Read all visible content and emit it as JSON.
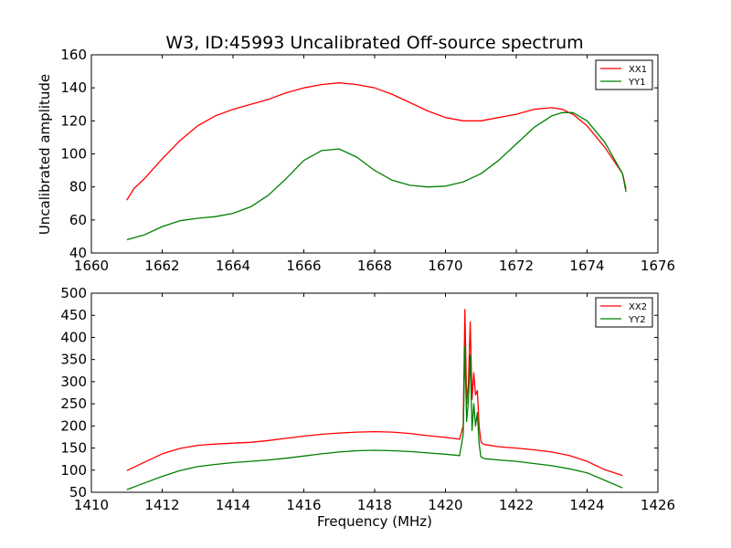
{
  "chart_data": [
    {
      "type": "line",
      "title": "W3, ID:45993 Uncalibrated Off-source spectrum",
      "xlabel": "",
      "ylabel": "Uncalibrated amplitude",
      "xlim": [
        1660,
        1676
      ],
      "ylim": [
        40,
        160
      ],
      "xticks": [
        1660,
        1662,
        1664,
        1666,
        1668,
        1670,
        1672,
        1674,
        1676
      ],
      "yticks": [
        40,
        60,
        80,
        100,
        120,
        140,
        160
      ],
      "legend_position": "top-right",
      "grid": false,
      "series": [
        {
          "name": "XX1",
          "color": "#ff0000",
          "x": [
            1661.0,
            1661.2,
            1661.5,
            1662.0,
            1662.5,
            1663.0,
            1663.5,
            1664.0,
            1664.5,
            1665.0,
            1665.5,
            1666.0,
            1666.5,
            1667.0,
            1667.5,
            1668.0,
            1668.5,
            1669.0,
            1669.5,
            1670.0,
            1670.5,
            1671.0,
            1671.5,
            1672.0,
            1672.5,
            1673.0,
            1673.3,
            1673.6,
            1674.0,
            1674.5,
            1675.0,
            1675.1
          ],
          "y": [
            72,
            79,
            85,
            97,
            108,
            117,
            123,
            127,
            130,
            133,
            137,
            140,
            142,
            143,
            142,
            140,
            136,
            131,
            126,
            122,
            120,
            120,
            122,
            124,
            127,
            128,
            127,
            124,
            117,
            104,
            88,
            79
          ]
        },
        {
          "name": "YY1",
          "color": "#008000",
          "x": [
            1661.0,
            1661.5,
            1662.0,
            1662.5,
            1663.0,
            1663.5,
            1664.0,
            1664.5,
            1665.0,
            1665.5,
            1666.0,
            1666.5,
            1667.0,
            1667.5,
            1668.0,
            1668.5,
            1669.0,
            1669.5,
            1670.0,
            1670.5,
            1671.0,
            1671.5,
            1672.0,
            1672.5,
            1673.0,
            1673.3,
            1673.6,
            1674.0,
            1674.5,
            1675.0,
            1675.1
          ],
          "y": [
            48,
            51,
            56,
            59.5,
            61,
            62,
            64,
            68,
            75,
            85,
            96,
            102,
            103,
            98,
            90,
            84,
            81,
            80,
            80.5,
            83,
            88,
            96,
            106,
            116,
            123,
            125,
            125,
            120,
            107,
            88,
            77
          ]
        }
      ]
    },
    {
      "type": "line",
      "title": "",
      "xlabel": "Frequency (MHz)",
      "ylabel": "",
      "xlim": [
        1410,
        1426
      ],
      "ylim": [
        50,
        500
      ],
      "xticks": [
        1410,
        1412,
        1414,
        1416,
        1418,
        1420,
        1422,
        1424,
        1426
      ],
      "yticks": [
        50,
        100,
        150,
        200,
        250,
        300,
        350,
        400,
        450,
        500
      ],
      "legend_position": "top-right",
      "grid": false,
      "series": [
        {
          "name": "XX2",
          "color": "#ff0000",
          "x": [
            1411.0,
            1411.5,
            1412.0,
            1412.5,
            1413.0,
            1413.5,
            1414.0,
            1414.5,
            1415.0,
            1415.5,
            1416.0,
            1416.5,
            1417.0,
            1417.5,
            1418.0,
            1418.5,
            1419.0,
            1419.5,
            1420.0,
            1420.4,
            1420.5,
            1420.55,
            1420.6,
            1420.65,
            1420.7,
            1420.75,
            1420.8,
            1420.85,
            1420.9,
            1420.95,
            1421.0,
            1421.05,
            1421.1,
            1421.5,
            1422.0,
            1422.5,
            1423.0,
            1423.5,
            1424.0,
            1424.5,
            1425.0
          ],
          "y": [
            99,
            118,
            137,
            149,
            156,
            159,
            161,
            163,
            167,
            172,
            177,
            181,
            184,
            186,
            187,
            186,
            183,
            178,
            174,
            170,
            200,
            463,
            250,
            300,
            435,
            260,
            320,
            270,
            280,
            200,
            165,
            160,
            158,
            153,
            150,
            146,
            141,
            133,
            120,
            101,
            88
          ]
        },
        {
          "name": "YY2",
          "color": "#008000",
          "x": [
            1411.0,
            1411.5,
            1412.0,
            1412.5,
            1413.0,
            1413.5,
            1414.0,
            1414.5,
            1415.0,
            1415.5,
            1416.0,
            1416.5,
            1417.0,
            1417.5,
            1418.0,
            1418.5,
            1419.0,
            1419.5,
            1420.0,
            1420.4,
            1420.5,
            1420.55,
            1420.6,
            1420.65,
            1420.7,
            1420.75,
            1420.8,
            1420.85,
            1420.9,
            1420.95,
            1421.0,
            1421.05,
            1421.1,
            1421.5,
            1422.0,
            1422.5,
            1423.0,
            1423.5,
            1424.0,
            1424.5,
            1425.0
          ],
          "y": [
            56,
            71,
            86,
            99,
            108,
            113,
            117,
            120,
            123,
            127,
            132,
            137,
            141,
            144,
            145,
            144,
            142,
            139,
            136,
            133,
            180,
            380,
            210,
            260,
            360,
            190,
            250,
            200,
            230,
            160,
            130,
            128,
            126,
            123,
            120,
            115,
            110,
            103,
            94,
            77,
            60
          ]
        }
      ]
    }
  ]
}
